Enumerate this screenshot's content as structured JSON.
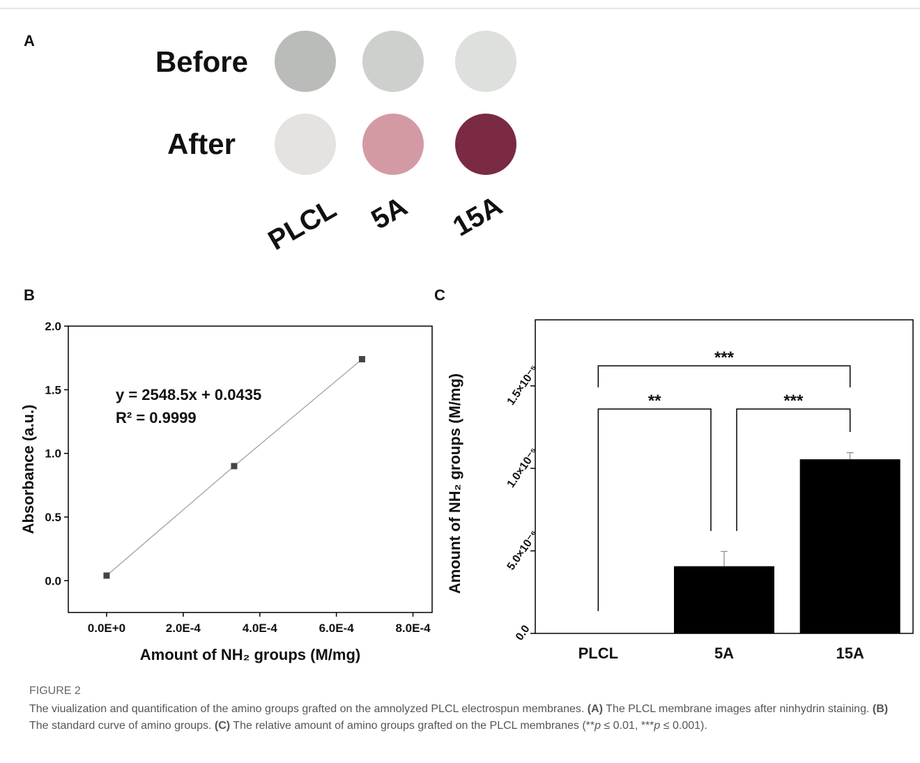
{
  "panel_a": {
    "label": "A",
    "rows": [
      "Before",
      "After"
    ],
    "columns": [
      "PLCL",
      "5A",
      "15A"
    ]
  },
  "chart_data": [
    {
      "type": "scatter",
      "panel_label": "B",
      "x": [
        0,
        0.000333,
        0.000667
      ],
      "values": [
        0.04,
        0.9,
        1.74
      ],
      "xlim": [
        -0.0001,
        0.00085
      ],
      "ylim": [
        -0.25,
        2.0
      ],
      "xticks": [
        {
          "value": 0,
          "label": "0.0E+0"
        },
        {
          "value": 0.0002,
          "label": "2.0E-4"
        },
        {
          "value": 0.0004,
          "label": "4.0E-4"
        },
        {
          "value": 0.0006,
          "label": "6.0E-4"
        },
        {
          "value": 0.0008,
          "label": "8.0E-4"
        }
      ],
      "yticks": [
        {
          "value": 0,
          "label": "0.0"
        },
        0.5,
        {
          "value": 1,
          "label": "1.0"
        },
        1.5,
        {
          "value": 2,
          "label": "2.0"
        }
      ],
      "xlabel": "Amount of NH₂ groups (M/mg)",
      "ylabel": "Absorbance (a.u.)",
      "annotations": [
        "y = 2548.5x + 0.0435",
        "R² = 0.9999"
      ],
      "color": "#444444",
      "line_color": "#999999"
    },
    {
      "type": "bar",
      "panel_label": "C",
      "categories": [
        "PLCL",
        "5A",
        "15A"
      ],
      "values": [
        0,
        4.07e-06,
        1.055e-05
      ],
      "errors": [
        null,
        9e-07,
        4e-07
      ],
      "ylim": [
        0,
        1.9e-05
      ],
      "yticks": [
        {
          "value": 0,
          "label": "0.0"
        },
        {
          "value": 5e-06,
          "label": "5.0×10⁻⁶"
        },
        {
          "value": 1e-05,
          "label": "1.0×10⁻⁵"
        },
        {
          "value": 1.5e-05,
          "label": "1.5×10⁻⁵"
        }
      ],
      "ylabel": "Amount of NH₂ groups (M/mg)",
      "significance": [
        "***",
        "**",
        "***"
      ],
      "color": "#000000"
    }
  ],
  "caption": {
    "label": "FIGURE 2",
    "parts": [
      "The viualization and quantification of the amino groups grafted on the amnolyzed PLCL electrospun membranes. ",
      "(A)",
      " The PLCL membrane images after ninhydrin staining. ",
      "(B)",
      " The standard curve of amino groups. ",
      "(C)",
      " The relative amount of amino groups grafted on the PLCL membranes (**",
      "p",
      " ≤ 0.01, ***",
      "p",
      " ≤ 0.001)."
    ]
  }
}
